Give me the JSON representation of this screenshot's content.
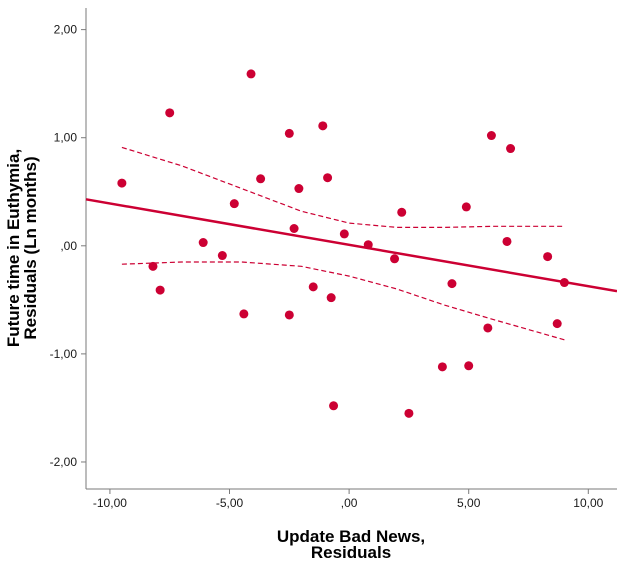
{
  "chart_data": {
    "type": "scatter",
    "xlabel": [
      "Update Bad News,",
      "Residuals"
    ],
    "ylabel": [
      "Future time in Euthymia,",
      "Residuals (Ln months)"
    ],
    "xlim": [
      -11.0,
      11.2
    ],
    "ylim": [
      -2.25,
      2.2
    ],
    "x_ticks": [
      -10,
      -5,
      0,
      5,
      10
    ],
    "x_tick_labels": [
      "-10,00",
      "-5,00",
      ",00",
      "5,00",
      "10,00"
    ],
    "y_ticks": [
      2,
      1,
      0,
      -1,
      -2
    ],
    "y_tick_labels": [
      "2,00",
      "1,00",
      ",00",
      "-1,00",
      "-2,00"
    ],
    "grid": false,
    "points": [
      {
        "x": -9.5,
        "y": 0.58
      },
      {
        "x": -8.2,
        "y": -0.19
      },
      {
        "x": -7.9,
        "y": -0.41
      },
      {
        "x": -7.5,
        "y": 1.23
      },
      {
        "x": -6.1,
        "y": 0.03
      },
      {
        "x": -5.3,
        "y": -0.09
      },
      {
        "x": -4.8,
        "y": 0.39
      },
      {
        "x": -4.4,
        "y": -0.63
      },
      {
        "x": -4.1,
        "y": 1.59
      },
      {
        "x": -3.7,
        "y": 0.62
      },
      {
        "x": -2.5,
        "y": 1.04
      },
      {
        "x": -2.5,
        "y": -0.64
      },
      {
        "x": -2.3,
        "y": 0.16
      },
      {
        "x": -2.1,
        "y": 0.53
      },
      {
        "x": -1.5,
        "y": -0.38
      },
      {
        "x": -1.1,
        "y": 1.11
      },
      {
        "x": -0.9,
        "y": 0.63
      },
      {
        "x": -0.75,
        "y": -0.48
      },
      {
        "x": -0.65,
        "y": -1.48
      },
      {
        "x": -0.2,
        "y": 0.11
      },
      {
        "x": 0.8,
        "y": 0.01
      },
      {
        "x": 1.9,
        "y": -0.12
      },
      {
        "x": 2.2,
        "y": 0.31
      },
      {
        "x": 2.5,
        "y": -1.55
      },
      {
        "x": 3.9,
        "y": -1.12
      },
      {
        "x": 4.3,
        "y": -0.35
      },
      {
        "x": 4.9,
        "y": 0.36
      },
      {
        "x": 5.0,
        "y": -1.11
      },
      {
        "x": 5.8,
        "y": -0.76
      },
      {
        "x": 5.95,
        "y": 1.02
      },
      {
        "x": 6.6,
        "y": 0.04
      },
      {
        "x": 6.75,
        "y": 0.9
      },
      {
        "x": 8.3,
        "y": -0.1
      },
      {
        "x": 8.7,
        "y": -0.72
      },
      {
        "x": 9.0,
        "y": -0.34
      }
    ],
    "fit_line": {
      "x": [
        -11.0,
        11.2
      ],
      "y": [
        0.43,
        -0.42
      ]
    },
    "ci_upper": {
      "x": [
        -9.5,
        -7.0,
        -4.5,
        -2.0,
        0.0,
        2.0,
        4.0,
        6.0,
        9.0
      ],
      "y": [
        0.91,
        0.74,
        0.53,
        0.32,
        0.21,
        0.17,
        0.17,
        0.18,
        0.18
      ]
    },
    "ci_lower": {
      "x": [
        -9.5,
        -7.0,
        -4.5,
        -2.0,
        0.0,
        2.0,
        4.0,
        6.0,
        9.0
      ],
      "y": [
        -0.17,
        -0.15,
        -0.15,
        -0.19,
        -0.28,
        -0.4,
        -0.55,
        -0.68,
        -0.87
      ]
    },
    "colors": {
      "marker": "#cc0033",
      "line": "#cc0033",
      "axis": "#7a7a7a",
      "text": "#1a1a1a"
    }
  }
}
